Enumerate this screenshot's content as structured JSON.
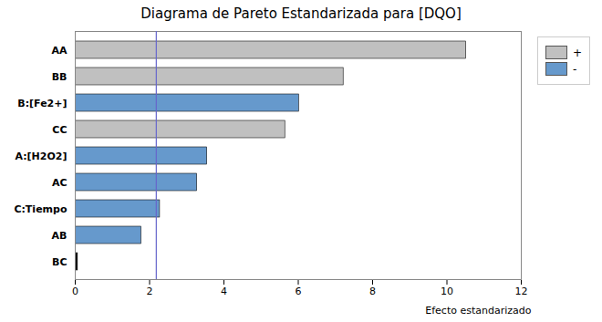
{
  "chart_data": {
    "type": "bar",
    "orientation": "horizontal",
    "title": "Diagrama de Pareto Estandarizada para [DQO]",
    "xlabel": "Efecto estandarizado",
    "categories": [
      "BC",
      "AB",
      "C:Tiempo",
      "AC",
      "A:[H2O2]",
      "CC",
      "B:[Fe2+]",
      "BB",
      "AA"
    ],
    "values": [
      0.07,
      1.78,
      2.28,
      3.28,
      3.55,
      5.65,
      6.02,
      7.22,
      10.52
    ],
    "colors": [
      "#000000",
      "#6699cc",
      "#6699cc",
      "#6699cc",
      "#6699cc",
      "#c0c0c0",
      "#6699cc",
      "#c0c0c0",
      "#c0c0c0"
    ],
    "reference_line": {
      "value": 2.18,
      "color": "#6666cc"
    },
    "xlim": [
      0,
      12
    ],
    "xticks": [
      0,
      2,
      4,
      6,
      8,
      10,
      12
    ],
    "grid": false,
    "legend": "right",
    "legend_entries": [
      {
        "name": "+",
        "color": "#c0c0c0"
      },
      {
        "name": "-",
        "color": "#6699cc"
      }
    ]
  }
}
